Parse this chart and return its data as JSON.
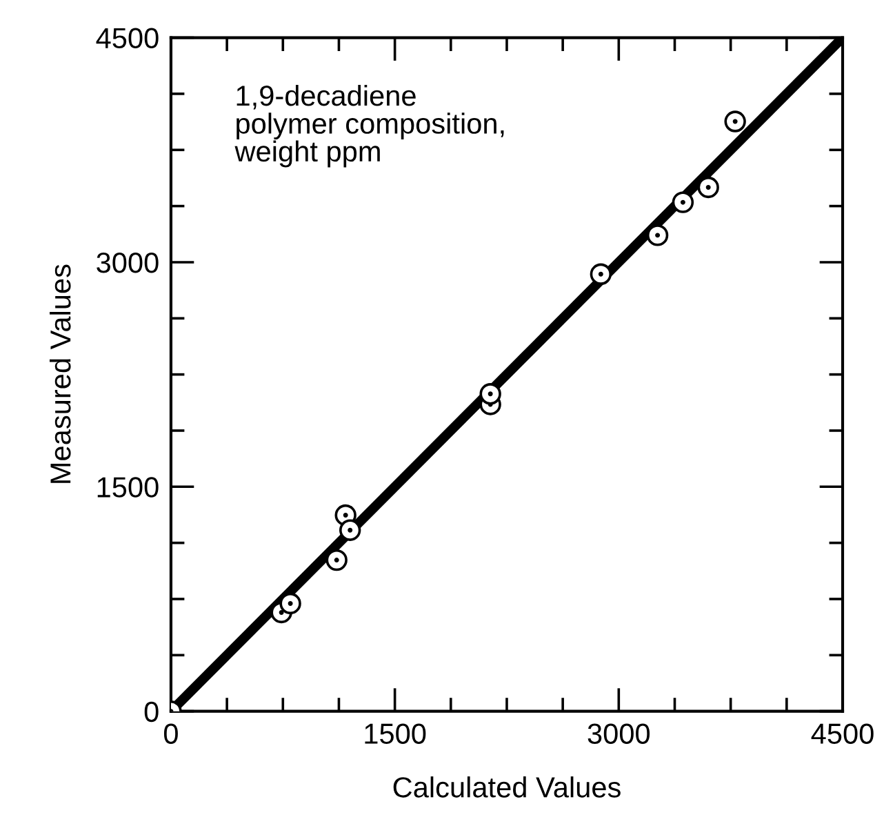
{
  "chart_data": {
    "type": "scatter",
    "xlabel": "Calculated Values",
    "ylabel": "Measured Values",
    "annotations": [
      "1,9-decadiene\npolymer composition,\nweight ppm"
    ],
    "xlim": [
      0,
      4500
    ],
    "ylim": [
      0,
      4500
    ],
    "xticks": [
      0,
      1500,
      3000,
      4500
    ],
    "yticks": [
      0,
      1500,
      3000,
      4500
    ],
    "grid": false,
    "series": [
      {
        "marker": "circle",
        "color": "#000000",
        "x": [
          0,
          740,
          800,
          1110,
          1170,
          1200,
          2140,
          2140,
          2880,
          3260,
          3430,
          3600,
          3780
        ],
        "values": [
          0,
          660,
          720,
          1010,
          1310,
          1210,
          2050,
          2120,
          2920,
          3180,
          3400,
          3500,
          3940
        ]
      },
      {
        "type": "line",
        "marker": "none",
        "color": "#000000",
        "x": [
          0,
          4500
        ],
        "values": [
          0,
          4500
        ]
      }
    ]
  }
}
